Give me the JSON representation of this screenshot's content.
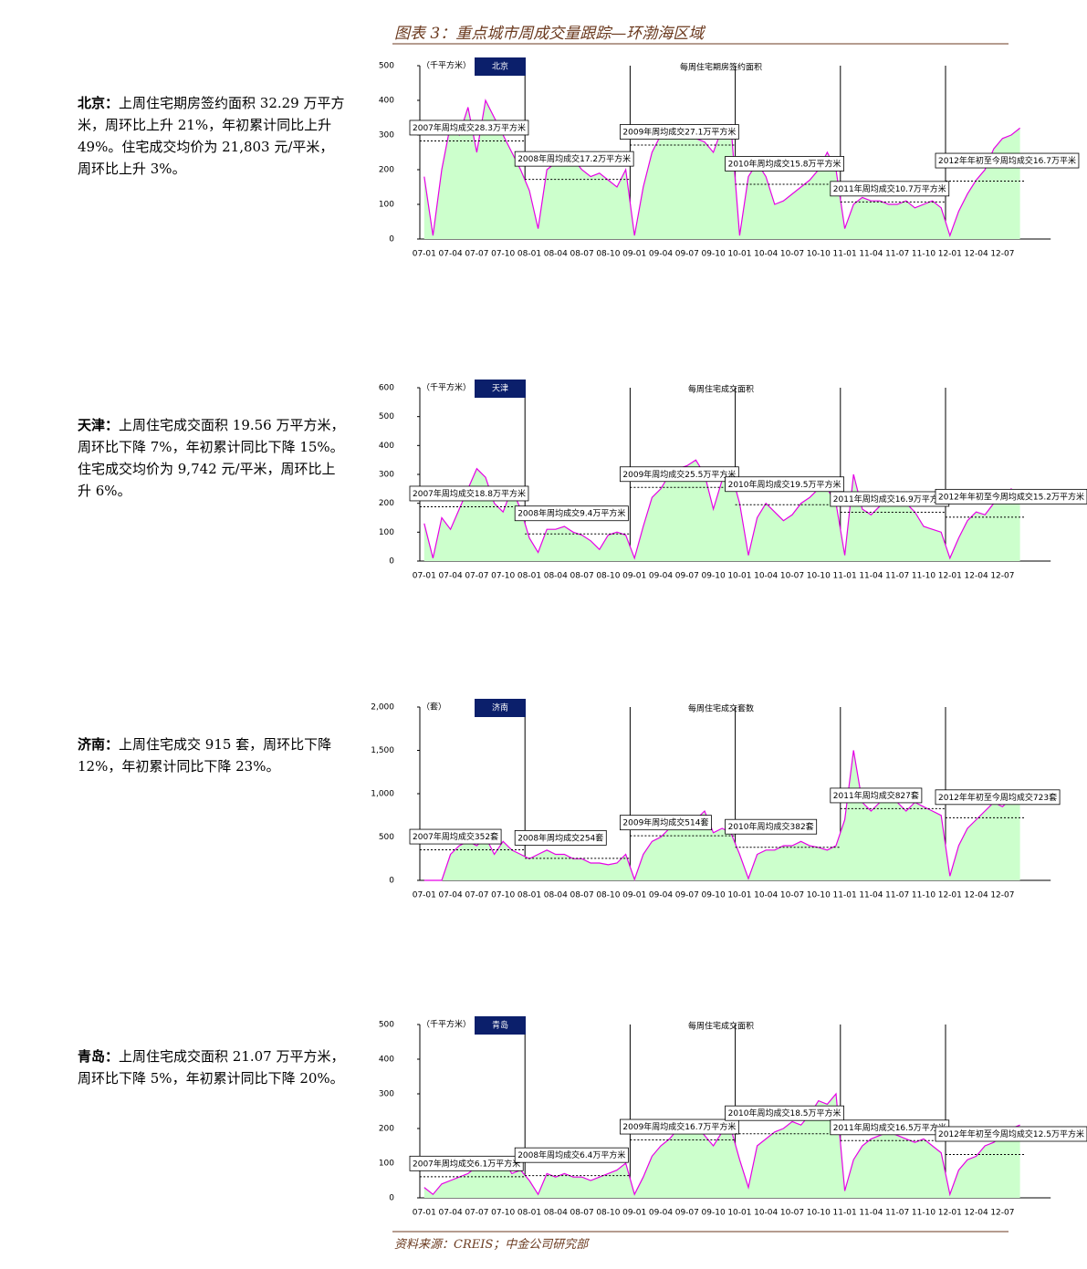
{
  "header": {
    "title": "图表 3：重点城市周成交量跟踪—环渤海区域"
  },
  "source": "资料来源：CREIS；中金公司研究部",
  "descriptions": [
    {
      "city": "北京：",
      "text": "上周住宅期房签约面积 32.29 万平方米，周环比上升 21%，年初累计同比上升 49%。住宅成交均价为 21,803 元/平米，周环比上升 3%。"
    },
    {
      "city": "天津：",
      "text": "上周住宅成交面积 19.56 万平方米，周环比下降 7%，年初累计同比下降 15%。住宅成交均价为 9,742 元/平米，周环比上升 6%。"
    },
    {
      "city": "济南：",
      "text": "上周住宅成交 915 套，周环比下降 12%，年初累计同比下降 23%。"
    },
    {
      "city": "青岛：",
      "text": "上周住宅成交面积 21.07 万平方米，周环比下降 5%，年初累计同比下降 20%。"
    }
  ],
  "chart_data": [
    {
      "type": "area",
      "title": "北京",
      "subtitle": "每周住宅期房签约面积",
      "unit": "（千平方米）",
      "color": "#e600e6",
      "fill": "#ccffcc",
      "categories": [
        "07-01",
        null,
        null,
        "07-04",
        null,
        null,
        "07-07",
        null,
        null,
        "07-10",
        null,
        null,
        "08-01",
        null,
        null,
        "08-04",
        null,
        null,
        "08-07",
        null,
        null,
        "08-10",
        null,
        null,
        "09-01",
        null,
        null,
        "09-04",
        null,
        null,
        "09-07",
        null,
        null,
        "09-10",
        null,
        null,
        "10-01",
        null,
        null,
        "10-04",
        null,
        null,
        "10-07",
        null,
        null,
        "10-10",
        null,
        null,
        "11-01",
        null,
        null,
        "11-04",
        null,
        null,
        "11-07",
        null,
        null,
        "11-10",
        null,
        null,
        "12-01",
        null,
        null,
        "12-04",
        null,
        null,
        "12-07",
        null,
        null
      ],
      "values": [
        180,
        10,
        200,
        330,
        300,
        380,
        250,
        400,
        350,
        300,
        250,
        200,
        140,
        30,
        200,
        220,
        250,
        230,
        200,
        180,
        190,
        170,
        150,
        200,
        10,
        150,
        250,
        300,
        320,
        330,
        300,
        290,
        280,
        250,
        320,
        330,
        10,
        180,
        220,
        180,
        100,
        110,
        130,
        150,
        170,
        200,
        250,
        200,
        30,
        100,
        120,
        110,
        110,
        100,
        100,
        110,
        90,
        100,
        110,
        90,
        10,
        80,
        130,
        170,
        200,
        260,
        290,
        300,
        320
      ],
      "ylim": [
        0,
        500
      ],
      "yticks": [
        0,
        100,
        200,
        300,
        400,
        500
      ],
      "averages": [
        {
          "label": "2007年周均成交28.3万平方米",
          "value": 283
        },
        {
          "label": "2008年周均成交17.2万平方米",
          "value": 172
        },
        {
          "label": "2009年周均成交27.1万平方米",
          "value": 271
        },
        {
          "label": "2010年周均成交15.8万平方米",
          "value": 158
        },
        {
          "label": "2011年周均成交10.7万平方米",
          "value": 107
        },
        {
          "label": "2012年年初至今周均成交16.7万平米",
          "value": 167
        }
      ]
    },
    {
      "type": "area",
      "title": "天津",
      "subtitle": "每周住宅成交面积",
      "unit": "（千平方米）",
      "color": "#e600e6",
      "fill": "#ccffcc",
      "categories": [
        "07-01",
        null,
        null,
        "07-04",
        null,
        null,
        "07-07",
        null,
        null,
        "07-10",
        null,
        null,
        "08-01",
        null,
        null,
        "08-04",
        null,
        null,
        "08-07",
        null,
        null,
        "08-10",
        null,
        null,
        "09-01",
        null,
        null,
        "09-04",
        null,
        null,
        "09-07",
        null,
        null,
        "09-10",
        null,
        null,
        "10-01",
        null,
        null,
        "10-04",
        null,
        null,
        "10-07",
        null,
        null,
        "10-10",
        null,
        null,
        "11-01",
        null,
        null,
        "11-04",
        null,
        null,
        "11-07",
        null,
        null,
        "11-10",
        null,
        null,
        "12-01",
        null,
        null,
        "12-04",
        null,
        null,
        "12-07",
        null,
        null
      ],
      "values": [
        130,
        10,
        150,
        110,
        180,
        250,
        320,
        290,
        200,
        170,
        250,
        180,
        80,
        30,
        110,
        110,
        120,
        100,
        90,
        70,
        40,
        90,
        100,
        90,
        10,
        120,
        220,
        250,
        300,
        320,
        330,
        350,
        300,
        180,
        280,
        310,
        200,
        20,
        150,
        200,
        170,
        140,
        160,
        200,
        220,
        250,
        250,
        200,
        20,
        300,
        180,
        160,
        190,
        200,
        210,
        200,
        170,
        120,
        110,
        100,
        10,
        80,
        140,
        170,
        160,
        200,
        230,
        250,
        200
      ],
      "ylim": [
        0,
        600
      ],
      "yticks": [
        0,
        100,
        200,
        300,
        400,
        500,
        600
      ],
      "averages": [
        {
          "label": "2007年周均成交18.8万平方米",
          "value": 188
        },
        {
          "label": "2008年周均成交9.4万平方米",
          "value": 94
        },
        {
          "label": "2009年周均成交25.5万平方米",
          "value": 255
        },
        {
          "label": "2010年周均成交19.5万平方米",
          "value": 195
        },
        {
          "label": "2011年周均成交16.9万平方米",
          "value": 169
        },
        {
          "label": "2012年年初至今周均成交15.2万平方米",
          "value": 152
        }
      ]
    },
    {
      "type": "area",
      "title": "济南",
      "subtitle": "每周住宅成交套数",
      "unit": "（套）",
      "color": "#e600e6",
      "fill": "#ccffcc",
      "categories": [
        "07-01",
        null,
        null,
        "07-04",
        null,
        null,
        "07-07",
        null,
        null,
        "07-10",
        null,
        null,
        "08-01",
        null,
        null,
        "08-04",
        null,
        null,
        "08-07",
        null,
        null,
        "08-10",
        null,
        null,
        "09-01",
        null,
        null,
        "09-04",
        null,
        null,
        "09-07",
        null,
        null,
        "09-10",
        null,
        null,
        "10-01",
        null,
        null,
        "10-04",
        null,
        null,
        "10-07",
        null,
        null,
        "10-10",
        null,
        null,
        "11-01",
        null,
        null,
        "11-04",
        null,
        null,
        "11-07",
        null,
        null,
        "11-10",
        null,
        null,
        "12-01",
        null,
        null,
        "12-04",
        null,
        null,
        "12-07",
        null,
        null
      ],
      "values": [
        0,
        0,
        0,
        300,
        400,
        450,
        400,
        500,
        300,
        450,
        350,
        300,
        250,
        300,
        350,
        300,
        300,
        250,
        250,
        200,
        200,
        180,
        200,
        300,
        10,
        300,
        450,
        500,
        600,
        700,
        650,
        700,
        800,
        550,
        600,
        550,
        300,
        20,
        300,
        350,
        350,
        400,
        400,
        450,
        400,
        380,
        350,
        400,
        700,
        1500,
        900,
        800,
        900,
        1000,
        900,
        800,
        900,
        850,
        800,
        750,
        50,
        400,
        600,
        700,
        800,
        900,
        850,
        950,
        1000
      ],
      "ylim": [
        0,
        2000
      ],
      "yticks": [
        0,
        500,
        {
          "value": 1000,
          "label": "1,000"
        },
        {
          "value": 1500,
          "label": "1,500"
        },
        {
          "value": 2000,
          "label": "2,000"
        }
      ],
      "averages": [
        {
          "label": "2007年周均成交352套",
          "value": 352
        },
        {
          "label": "2008年周均成交254套",
          "value": 254
        },
        {
          "label": "2009年周均成交514套",
          "value": 514
        },
        {
          "label": "2010年周均成交382套",
          "value": 382
        },
        {
          "label": "2011年周均成交827套",
          "value": 827
        },
        {
          "label": "2012年年初至今周均成交723套",
          "value": 723
        }
      ]
    },
    {
      "type": "area",
      "title": "青岛",
      "subtitle": "每周住宅成交面积",
      "unit": "（千平方米）",
      "color": "#e600e6",
      "fill": "#ccffcc",
      "categories": [
        "07-01",
        null,
        null,
        "07-04",
        null,
        null,
        "07-07",
        null,
        null,
        "07-10",
        null,
        null,
        "08-01",
        null,
        null,
        "08-04",
        null,
        null,
        "08-07",
        null,
        null,
        "08-10",
        null,
        null,
        "09-01",
        null,
        null,
        "09-04",
        null,
        null,
        "09-07",
        null,
        null,
        "09-10",
        null,
        null,
        "10-01",
        null,
        null,
        "10-04",
        null,
        null,
        "10-07",
        null,
        null,
        "10-10",
        null,
        null,
        "11-01",
        null,
        null,
        "11-04",
        null,
        null,
        "11-07",
        null,
        null,
        "11-10",
        null,
        null,
        "12-01",
        null,
        null,
        "12-04",
        null,
        null,
        "12-07",
        null,
        null
      ],
      "values": [
        30,
        10,
        40,
        50,
        60,
        70,
        90,
        80,
        100,
        110,
        70,
        80,
        50,
        10,
        70,
        60,
        70,
        60,
        60,
        50,
        60,
        70,
        80,
        100,
        10,
        60,
        120,
        150,
        170,
        200,
        220,
        210,
        180,
        150,
        190,
        200,
        110,
        30,
        150,
        170,
        190,
        200,
        220,
        210,
        240,
        280,
        270,
        300,
        20,
        110,
        150,
        170,
        180,
        190,
        180,
        170,
        160,
        170,
        150,
        130,
        10,
        80,
        110,
        120,
        150,
        160,
        180,
        200,
        210
      ],
      "ylim": [
        0,
        500
      ],
      "yticks": [
        0,
        100,
        200,
        300,
        400,
        500
      ],
      "averages": [
        {
          "label": "2007年周均成交6.1万平方米",
          "value": 61
        },
        {
          "label": "2008年周均成交6.4万平方米",
          "value": 64
        },
        {
          "label": "2009年周均成交16.7万平方米",
          "value": 167
        },
        {
          "label": "2010年周均成交18.5万平方米",
          "value": 185
        },
        {
          "label": "2011年周均成交16.5万平方米",
          "value": 165
        },
        {
          "label": "2012年年初至今周均成交12.5万平方米",
          "value": 125
        }
      ]
    }
  ]
}
